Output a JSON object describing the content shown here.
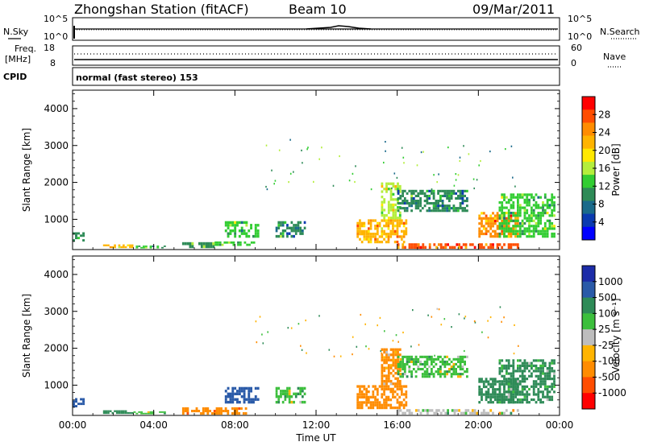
{
  "header": {
    "station": "Zhongshan Station (fitACF)",
    "beam": "Beam 10",
    "date": "09/Mar/2011"
  },
  "strip_panels": {
    "nsky": {
      "label": "N.Sky",
      "tick_top": "10^5",
      "tick_bottom": "10^0"
    },
    "nsearch": {
      "label": "N.Search",
      "tick_top": "10^5",
      "tick_bottom": "10^0"
    },
    "freq": {
      "label_line1": "Freq.",
      "label_line2": "[MHz]",
      "tick_top": "18",
      "tick_bottom": "8"
    },
    "nave": {
      "label": "Nave",
      "tick_top": "60",
      "tick_bottom": "0"
    },
    "cpid": {
      "label": "CPID",
      "value": "normal (fast stereo) 153"
    }
  },
  "colorbars": {
    "power": {
      "title": "Power [dB]",
      "ticks": [
        "28",
        "24",
        "20",
        "16",
        "12",
        "8",
        "4"
      ],
      "colors": [
        "#ff0000",
        "#ff4d00",
        "#ff8c00",
        "#ffb400",
        "#ffe800",
        "#b4ee3c",
        "#32cd32",
        "#2e8b57",
        "#1a6a8a",
        "#0a3ab0",
        "#0000ff"
      ]
    },
    "velocity": {
      "title": "Velocity [m s⁻¹]",
      "ticks": [
        "1000",
        "500",
        "100",
        "25",
        "-25",
        "-100",
        "-500",
        "-1000"
      ],
      "colors": [
        "#1c2ca8",
        "#2a5aa8",
        "#2e8b57",
        "#3cbf3c",
        "#bdbdbd",
        "#ffb400",
        "#ff8c00",
        "#ff4d00",
        "#ff0000"
      ]
    }
  },
  "chart_data": [
    {
      "type": "heatmap",
      "title": "Power",
      "xlabel": "",
      "ylabel": "Slant Range [km]",
      "x_ticks": [
        "00:00",
        "04:00",
        "08:00",
        "12:00",
        "16:00",
        "20:00",
        "00:00"
      ],
      "y_ticks": [
        "1000",
        "2000",
        "3000",
        "4000"
      ],
      "xlim_hours": [
        0,
        24
      ],
      "ylim_km": [
        180,
        4500
      ],
      "regions": [
        {
          "t0": 0.0,
          "t1": 0.6,
          "r0": 400,
          "r1": 650,
          "v": 10
        },
        {
          "t0": 1.5,
          "t1": 3.0,
          "r0": 220,
          "r1": 320,
          "v": 20
        },
        {
          "t0": 3.0,
          "t1": 4.6,
          "r0": 210,
          "r1": 290,
          "v": 12
        },
        {
          "t0": 5.4,
          "t1": 7.0,
          "r0": 220,
          "r1": 380,
          "v": 10
        },
        {
          "t0": 7.0,
          "t1": 9.0,
          "r0": 280,
          "r1": 400,
          "v": 12
        },
        {
          "t0": 7.5,
          "t1": 9.2,
          "r0": 500,
          "r1": 950,
          "v": 12
        },
        {
          "t0": 10.0,
          "t1": 11.5,
          "r0": 500,
          "r1": 950,
          "v": 8
        },
        {
          "t0": 14.0,
          "t1": 16.5,
          "r0": 350,
          "r1": 1000,
          "v": 22
        },
        {
          "t0": 15.2,
          "t1": 16.2,
          "r0": 1000,
          "r1": 2000,
          "v": 16
        },
        {
          "t0": 16.0,
          "t1": 19.5,
          "r0": 1200,
          "r1": 1800,
          "v": 8
        },
        {
          "t0": 16.0,
          "t1": 22.0,
          "r0": 200,
          "r1": 350,
          "v": 26
        },
        {
          "t0": 20.0,
          "t1": 22.0,
          "r0": 500,
          "r1": 1200,
          "v": 24
        },
        {
          "t0": 21.0,
          "t1": 23.8,
          "r0": 500,
          "r1": 1700,
          "v": 12
        }
      ]
    },
    {
      "type": "heatmap",
      "title": "Velocity",
      "xlabel": "Time UT",
      "ylabel": "Slant Range [km]",
      "x_ticks": [
        "00:00",
        "04:00",
        "08:00",
        "12:00",
        "16:00",
        "20:00",
        "00:00"
      ],
      "y_ticks": [
        "1000",
        "2000",
        "3000",
        "4000"
      ],
      "xlim_hours": [
        0,
        24
      ],
      "ylim_km": [
        180,
        4500
      ],
      "regions": [
        {
          "t0": 0.0,
          "t1": 0.6,
          "r0": 400,
          "r1": 650,
          "v": 700
        },
        {
          "t0": 1.5,
          "t1": 3.0,
          "r0": 220,
          "r1": 320,
          "v": 300
        },
        {
          "t0": 3.0,
          "t1": 4.6,
          "r0": 210,
          "r1": 290,
          "v": 60
        },
        {
          "t0": 5.4,
          "t1": 8.6,
          "r0": 200,
          "r1": 400,
          "v": -400
        },
        {
          "t0": 7.5,
          "t1": 9.2,
          "r0": 500,
          "r1": 950,
          "v": 700
        },
        {
          "t0": 10.0,
          "t1": 11.5,
          "r0": 500,
          "r1": 950,
          "v": 60
        },
        {
          "t0": 14.0,
          "t1": 16.5,
          "r0": 350,
          "r1": 1000,
          "v": -300
        },
        {
          "t0": 15.2,
          "t1": 16.2,
          "r0": 1000,
          "r1": 2000,
          "v": -150
        },
        {
          "t0": 16.0,
          "t1": 19.5,
          "r0": 1200,
          "r1": 1800,
          "v": 60
        },
        {
          "t0": 16.0,
          "t1": 22.0,
          "r0": 200,
          "r1": 350,
          "v": 0
        },
        {
          "t0": 20.0,
          "t1": 22.0,
          "r0": 500,
          "r1": 1200,
          "v": 300
        },
        {
          "t0": 21.0,
          "t1": 23.8,
          "r0": 500,
          "r1": 1700,
          "v": 150
        }
      ]
    }
  ]
}
